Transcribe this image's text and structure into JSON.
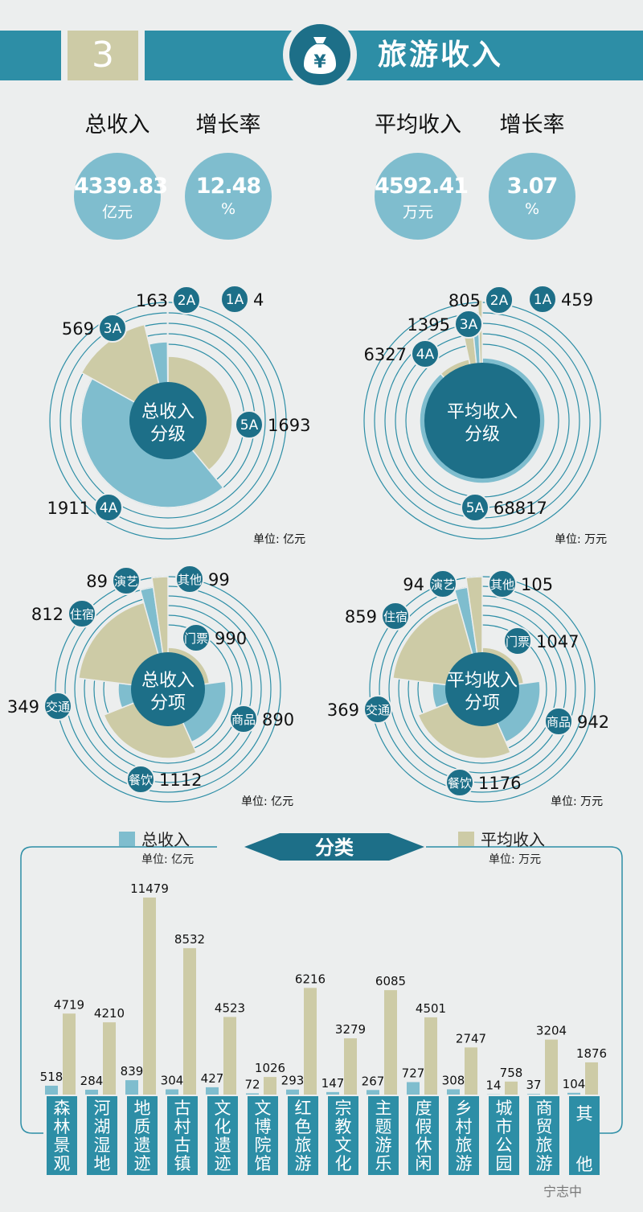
{
  "header": {
    "number": "3",
    "title": "旅游收入",
    "icon": "money-bag-yen-icon"
  },
  "kpis": [
    {
      "label": "总收入",
      "value": "4339.83",
      "unit": "亿元"
    },
    {
      "label": "增长率",
      "value": "12.48",
      "unit": "%"
    },
    {
      "label": "平均收入",
      "value": "4592.41",
      "unit": "万元"
    },
    {
      "label": "增长率",
      "value": "3.07",
      "unit": "%"
    }
  ],
  "colors": {
    "teal": "#2d8ea6",
    "dark_teal": "#1d6f88",
    "light_blue": "#7fbdce",
    "khaki": "#cdcba6",
    "background": "#eceeee"
  },
  "chart_data": [
    {
      "type": "pie",
      "center_label": "总收入\n分级",
      "unit_note": "单位: 亿元",
      "categories": [
        "5A",
        "4A",
        "3A",
        "2A",
        "1A"
      ],
      "values": [
        1693,
        1911,
        569,
        163,
        4
      ]
    },
    {
      "type": "pie",
      "center_label": "平均收入\n分级",
      "unit_note": "单位: 万元",
      "categories": [
        "5A",
        "4A",
        "3A",
        "2A",
        "1A"
      ],
      "values": [
        68817,
        6327,
        1395,
        805,
        459
      ]
    },
    {
      "type": "pie",
      "center_label": "总收入\n分项",
      "unit_note": "单位: 亿元",
      "categories": [
        "门票",
        "商品",
        "餐饮",
        "交通",
        "住宿",
        "演艺",
        "其他"
      ],
      "values": [
        990,
        890,
        1112,
        349,
        812,
        89,
        99
      ]
    },
    {
      "type": "pie",
      "center_label": "平均收入\n分项",
      "unit_note": "单位: 万元",
      "categories": [
        "门票",
        "商品",
        "餐饮",
        "交通",
        "住宿",
        "演艺",
        "其他"
      ],
      "values": [
        1047,
        942,
        1176,
        369,
        859,
        94,
        105
      ]
    },
    {
      "type": "bar",
      "title": "分类",
      "categories": [
        "森林景观",
        "河湖湿地",
        "地质遗迹",
        "古村古镇",
        "文化遗迹",
        "文博院馆",
        "红色旅游",
        "宗教文化",
        "主题游乐",
        "度假休闲",
        "乡村旅游",
        "城市公园",
        "商贸旅游",
        "其他"
      ],
      "series": [
        {
          "name": "总收入",
          "unit_note": "单位: 亿元",
          "values": [
            518,
            284,
            839,
            304,
            427,
            72,
            293,
            147,
            267,
            727,
            308,
            14,
            37,
            104
          ]
        },
        {
          "name": "平均收入",
          "unit_note": "单位: 万元",
          "values": [
            4719,
            4210,
            11479,
            8532,
            4523,
            1026,
            6216,
            3279,
            6085,
            4501,
            2747,
            758,
            3204,
            1876
          ]
        }
      ]
    }
  ],
  "watermark": "宁志中"
}
